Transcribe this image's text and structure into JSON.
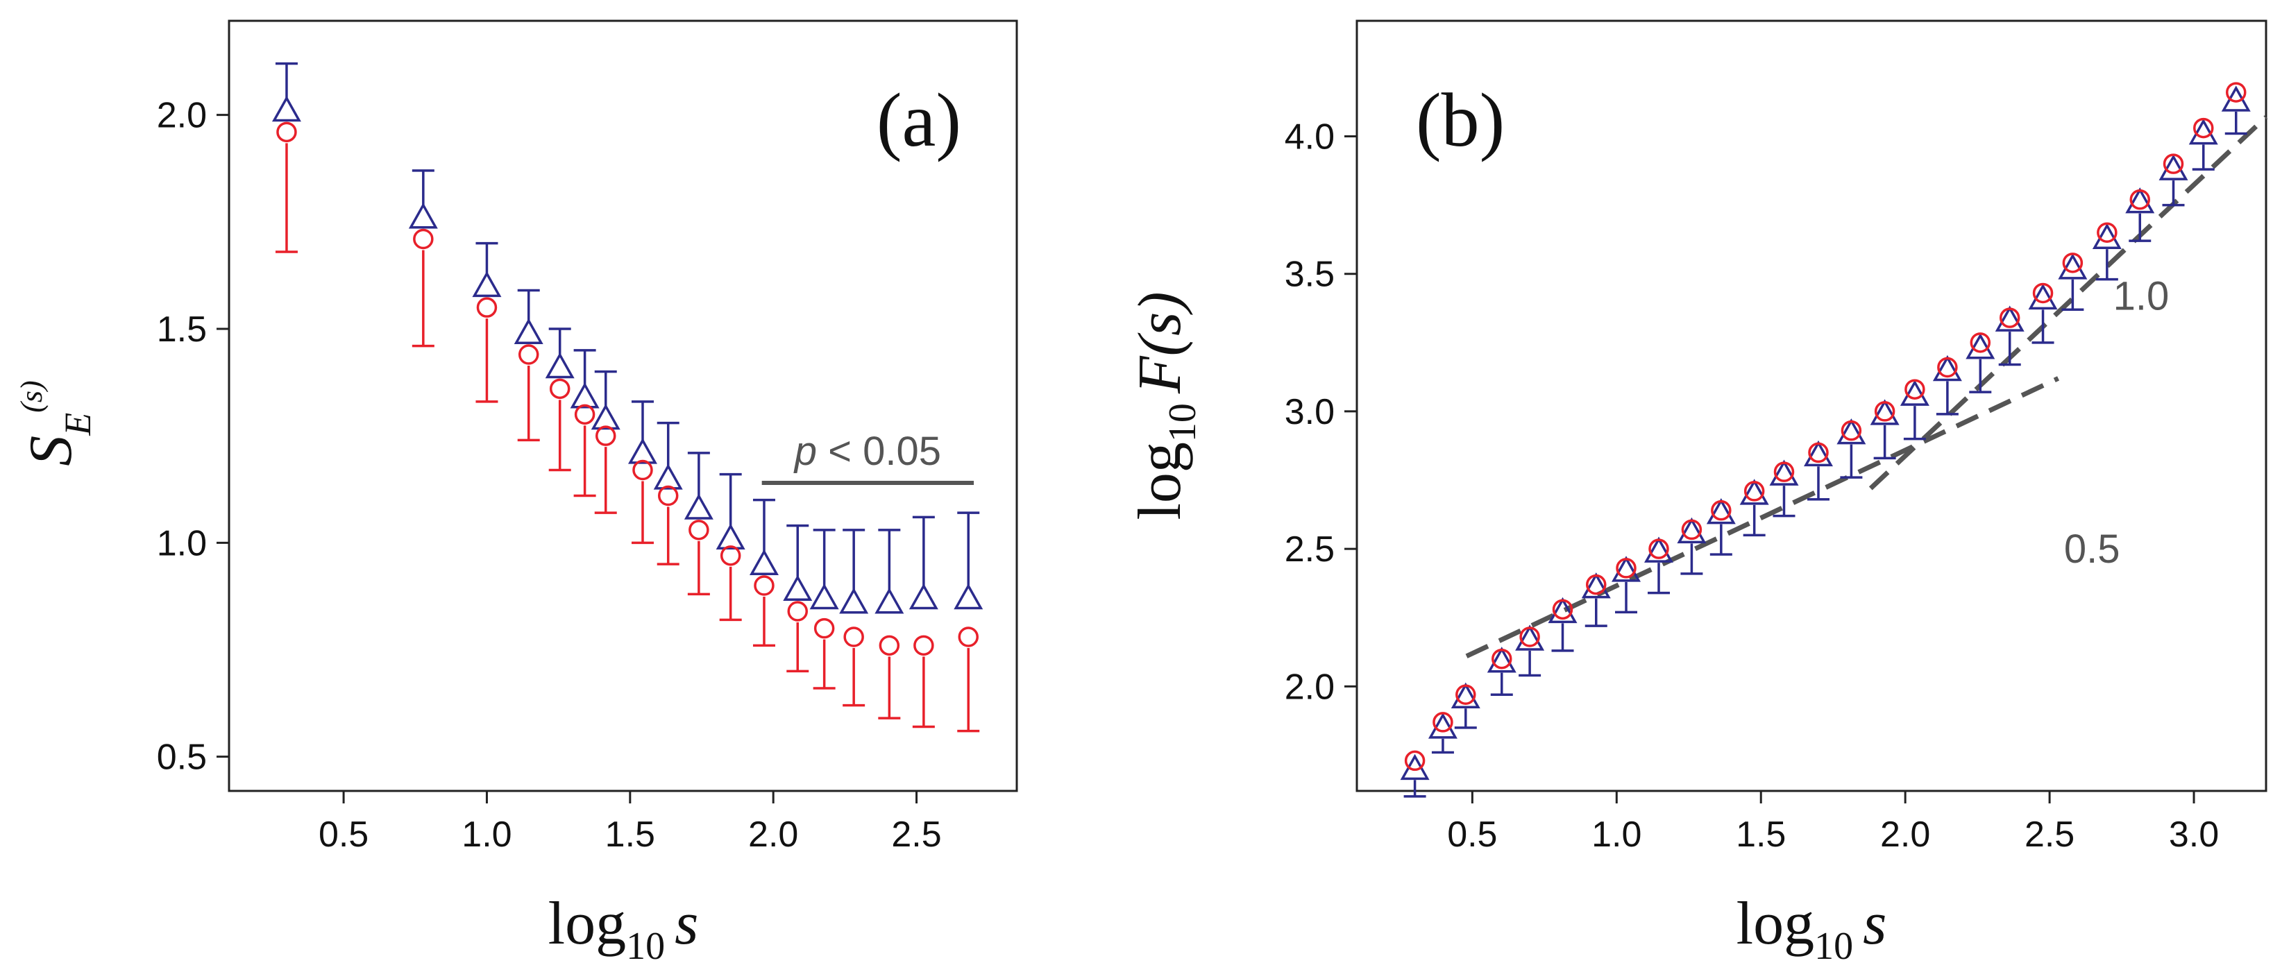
{
  "chart_data": [
    {
      "type": "scatter",
      "panel_label": "(a)",
      "xlabel_main": "log",
      "xlabel_sub": "10",
      "xlabel_var": "s",
      "ylabel_main": "S",
      "ylabel_sub": "E",
      "ylabel_sup": "(s)",
      "xlim": [
        0.1,
        2.85
      ],
      "ylim": [
        0.42,
        2.22
      ],
      "xticks": [
        0.5,
        1.0,
        1.5,
        2.0,
        2.5
      ],
      "xtick_labels": [
        "0.5",
        "1.0",
        "1.5",
        "2.0",
        "2.5"
      ],
      "yticks": [
        0.5,
        1.0,
        1.5,
        2.0
      ],
      "ytick_labels": [
        "0.5",
        "1.0",
        "1.5",
        "2.0"
      ],
      "annotation": {
        "text": "p < 0.05",
        "text_p": "p",
        "text_rest": " < 0.05",
        "x_start": 1.96,
        "x_end": 2.7,
        "y": 1.14
      },
      "series": [
        {
          "marker": "triangle",
          "color": "#2b2b8c",
          "error_direction": "up",
          "x": [
            0.301,
            0.778,
            1.0,
            1.146,
            1.255,
            1.342,
            1.415,
            1.544,
            1.633,
            1.74,
            1.851,
            1.968,
            2.085,
            2.178,
            2.281,
            2.405,
            2.525,
            2.681
          ],
          "y": [
            2.01,
            1.76,
            1.6,
            1.49,
            1.41,
            1.34,
            1.29,
            1.21,
            1.15,
            1.08,
            1.01,
            0.95,
            0.89,
            0.87,
            0.86,
            0.86,
            0.87,
            0.87
          ],
          "err": [
            0.11,
            0.11,
            0.1,
            0.1,
            0.09,
            0.11,
            0.11,
            0.12,
            0.13,
            0.13,
            0.15,
            0.15,
            0.15,
            0.16,
            0.17,
            0.17,
            0.19,
            0.2
          ]
        },
        {
          "marker": "circle",
          "color": "#e8202a",
          "error_direction": "down",
          "x": [
            0.301,
            0.778,
            1.0,
            1.146,
            1.255,
            1.342,
            1.415,
            1.544,
            1.633,
            1.74,
            1.851,
            1.968,
            2.085,
            2.178,
            2.281,
            2.405,
            2.525,
            2.681
          ],
          "y": [
            1.96,
            1.71,
            1.55,
            1.44,
            1.36,
            1.3,
            1.25,
            1.17,
            1.11,
            1.03,
            0.97,
            0.9,
            0.84,
            0.8,
            0.78,
            0.76,
            0.76,
            0.78
          ],
          "err": [
            0.28,
            0.25,
            0.22,
            0.2,
            0.19,
            0.19,
            0.18,
            0.17,
            0.16,
            0.15,
            0.15,
            0.14,
            0.14,
            0.14,
            0.16,
            0.17,
            0.19,
            0.22
          ]
        }
      ]
    },
    {
      "type": "scatter",
      "panel_label": "(b)",
      "xlabel_main": "log",
      "xlabel_sub": "10",
      "xlabel_var": "s",
      "ylabel_main": "log",
      "ylabel_sub": "10",
      "ylabel_var": "F(s)",
      "xlim": [
        0.1,
        3.25
      ],
      "ylim": [
        1.62,
        4.42
      ],
      "xticks": [
        0.5,
        1.0,
        1.5,
        2.0,
        2.5,
        3.0
      ],
      "xtick_labels": [
        "0.5",
        "1.0",
        "1.5",
        "2.0",
        "2.5",
        "3.0"
      ],
      "yticks": [
        2.0,
        2.5,
        3.0,
        3.5,
        4.0
      ],
      "ytick_labels": [
        "2.0",
        "2.5",
        "3.0",
        "3.5",
        "4.0"
      ],
      "reference_lines": [
        {
          "label": "0.5",
          "x": [
            0.48,
            2.53
          ],
          "y": [
            2.11,
            3.12
          ],
          "label_x": 2.55,
          "label_y": 2.45
        },
        {
          "label": "1.0",
          "x": [
            1.88,
            3.25
          ],
          "y": [
            2.72,
            4.07
          ],
          "label_x": 2.72,
          "label_y": 3.37
        }
      ],
      "series": [
        {
          "marker": "triangle",
          "color": "#2b2b8c",
          "error_direction": "down",
          "x": [
            0.301,
            0.398,
            0.477,
            0.602,
            0.699,
            0.813,
            0.929,
            1.033,
            1.146,
            1.26,
            1.362,
            1.477,
            1.58,
            1.699,
            1.813,
            1.929,
            2.033,
            2.146,
            2.26,
            2.362,
            2.477,
            2.58,
            2.699,
            2.813,
            2.929,
            3.033,
            3.146
          ],
          "y": [
            1.7,
            1.85,
            1.96,
            2.09,
            2.17,
            2.27,
            2.36,
            2.42,
            2.49,
            2.56,
            2.63,
            2.7,
            2.77,
            2.84,
            2.92,
            2.99,
            3.06,
            3.15,
            3.23,
            3.33,
            3.41,
            3.52,
            3.63,
            3.76,
            3.88,
            4.01,
            4.13
          ],
          "err": [
            0.1,
            0.09,
            0.11,
            0.12,
            0.13,
            0.14,
            0.14,
            0.15,
            0.15,
            0.15,
            0.15,
            0.15,
            0.15,
            0.16,
            0.16,
            0.16,
            0.16,
            0.16,
            0.16,
            0.16,
            0.16,
            0.15,
            0.15,
            0.14,
            0.13,
            0.13,
            0.12
          ]
        },
        {
          "marker": "circle",
          "color": "#e8202a",
          "error_direction": "up",
          "x": [
            0.301,
            0.398,
            0.477,
            0.602,
            0.699,
            0.813,
            0.929,
            1.033,
            1.146,
            1.26,
            1.362,
            1.477,
            1.58,
            1.699,
            1.813,
            1.929,
            2.033,
            2.146,
            2.26,
            2.362,
            2.477,
            2.58,
            2.699,
            2.813,
            2.929,
            3.033,
            3.146
          ],
          "y": [
            1.73,
            1.87,
            1.97,
            2.1,
            2.18,
            2.28,
            2.37,
            2.43,
            2.5,
            2.57,
            2.64,
            2.71,
            2.78,
            2.85,
            2.93,
            3.0,
            3.08,
            3.16,
            3.25,
            3.34,
            3.43,
            3.54,
            3.65,
            3.77,
            3.9,
            4.03,
            4.16
          ]
        }
      ]
    }
  ]
}
